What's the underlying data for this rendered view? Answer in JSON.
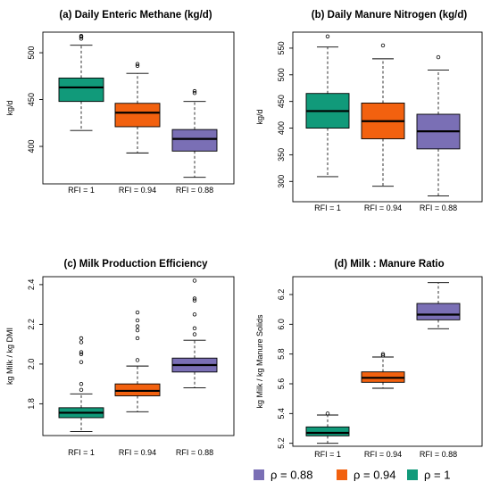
{
  "colors": {
    "rho_0_88": "#7a6fb5",
    "rho_0_94": "#f2610f",
    "rho_1": "#119a7a"
  },
  "legend": [
    {
      "label": "ρ = 0.88",
      "color": "#7a6fb5"
    },
    {
      "label": "ρ = 0.94",
      "color": "#f2610f"
    },
    {
      "label": "ρ = 1",
      "color": "#119a7a"
    }
  ],
  "chart_data": [
    {
      "type": "boxplot",
      "title": "(a) Daily Enteric Methane (kg/d)",
      "ylabel": "kg/d",
      "ylim": [
        360,
        522
      ],
      "yticks": [
        400,
        450,
        500
      ],
      "categories": [
        "RFI = 1",
        "RFI = 0.94",
        "RFI = 0.88"
      ],
      "boxes": [
        {
          "whisker_low": 417,
          "q1": 448,
          "median": 463,
          "q3": 473,
          "whisker_high": 508,
          "outliers": [
            515,
            517,
            518
          ],
          "color": "#119a7a"
        },
        {
          "whisker_low": 393,
          "q1": 421,
          "median": 436,
          "q3": 446,
          "whisker_high": 478,
          "outliers": [
            486,
            488
          ],
          "color": "#f2610f"
        },
        {
          "whisker_low": 367,
          "q1": 395,
          "median": 408,
          "q3": 418,
          "whisker_high": 448,
          "outliers": [
            457,
            459
          ],
          "color": "#7a6fb5"
        }
      ]
    },
    {
      "type": "boxplot",
      "title": "(b) Daily Manure Nitrogen (kg/d)",
      "ylabel": "kg/d",
      "ylim": [
        262,
        580
      ],
      "yticks": [
        300,
        350,
        400,
        450,
        500,
        550
      ],
      "categories": [
        "RFI = 1",
        "RFI = 0.94",
        "RFI = 0.88"
      ],
      "boxes": [
        {
          "whisker_low": 309,
          "q1": 400,
          "median": 432,
          "q3": 465,
          "whisker_high": 552,
          "outliers": [
            572
          ],
          "color": "#119a7a"
        },
        {
          "whisker_low": 291,
          "q1": 380,
          "median": 413,
          "q3": 447,
          "whisker_high": 530,
          "outliers": [
            555
          ],
          "color": "#f2610f"
        },
        {
          "whisker_low": 273,
          "q1": 361,
          "median": 394,
          "q3": 426,
          "whisker_high": 509,
          "outliers": [
            533
          ],
          "color": "#7a6fb5"
        }
      ]
    },
    {
      "type": "boxplot",
      "title": "(c) Milk Production Efficiency",
      "ylabel": "kg Milk / kg DMI",
      "ylim": [
        1.64,
        2.44
      ],
      "yticks": [
        1.8,
        2.0,
        2.2,
        2.4
      ],
      "categories": [
        "RFI = 1",
        "RFI = 0.94",
        "RFI = 0.88"
      ],
      "boxes": [
        {
          "whisker_low": 1.66,
          "q1": 1.73,
          "median": 1.755,
          "q3": 1.78,
          "whisker_high": 1.85,
          "outliers": [
            1.87,
            1.9,
            2.01,
            2.05,
            2.06,
            2.11,
            2.13
          ],
          "color": "#119a7a"
        },
        {
          "whisker_low": 1.76,
          "q1": 1.84,
          "median": 1.865,
          "q3": 1.9,
          "whisker_high": 1.99,
          "outliers": [
            2.02,
            2.13,
            2.17,
            2.19,
            2.22,
            2.26
          ],
          "color": "#f2610f"
        },
        {
          "whisker_low": 1.88,
          "q1": 1.96,
          "median": 1.995,
          "q3": 2.03,
          "whisker_high": 2.12,
          "outliers": [
            2.15,
            2.18,
            2.25,
            2.32,
            2.33,
            2.42
          ],
          "color": "#7a6fb5"
        }
      ]
    },
    {
      "type": "boxplot",
      "title": "(d) Milk : Manure Ratio",
      "ylabel": "kg Milk / kg Manure Solids",
      "ylim": [
        5.18,
        6.32
      ],
      "yticks": [
        5.2,
        5.4,
        5.6,
        5.8,
        6.0,
        6.2
      ],
      "categories": [
        "RFI = 1",
        "RFI = 0.94",
        "RFI = 0.88"
      ],
      "boxes": [
        {
          "whisker_low": 5.2,
          "q1": 5.25,
          "median": 5.27,
          "q3": 5.31,
          "whisker_high": 5.39,
          "outliers": [
            5.4
          ],
          "color": "#119a7a"
        },
        {
          "whisker_low": 5.57,
          "q1": 5.61,
          "median": 5.64,
          "q3": 5.68,
          "whisker_high": 5.78,
          "outliers": [
            5.79,
            5.8
          ],
          "color": "#f2610f"
        },
        {
          "whisker_low": 5.97,
          "q1": 6.03,
          "median": 6.065,
          "q3": 6.14,
          "whisker_high": 6.28,
          "outliers": [],
          "color": "#7a6fb5"
        }
      ]
    }
  ]
}
